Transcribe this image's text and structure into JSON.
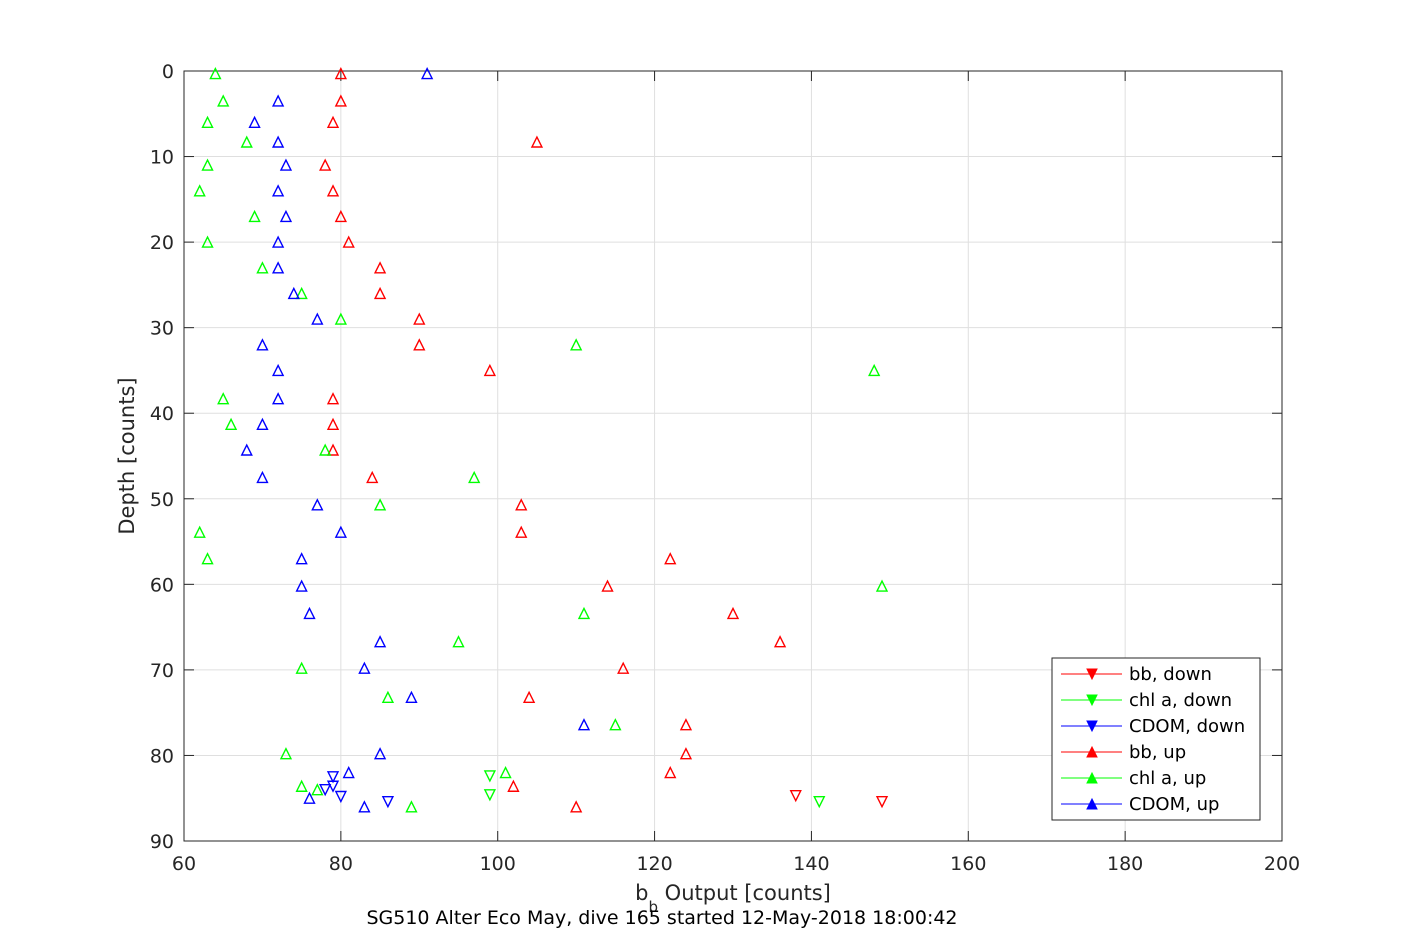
{
  "chart_data": {
    "type": "scatter",
    "title": "SG510 Alter Eco May, dive 165 started 12-May-2018 18:00:42",
    "xlabel_main": "b",
    "xlabel_sub": "b",
    "xlabel_rest": " Output [counts]",
    "ylabel": "Depth [counts]",
    "xlim": [
      60,
      200
    ],
    "ylim": [
      0,
      90
    ],
    "y_reversed": true,
    "xticks": [
      60,
      80,
      100,
      120,
      140,
      160,
      180,
      200
    ],
    "yticks": [
      0,
      10,
      20,
      30,
      40,
      50,
      60,
      70,
      80,
      90
    ],
    "grid": true,
    "legend_position": "bottom-right",
    "series": [
      {
        "name": "bb, down",
        "color": "#ff0000",
        "marker": "triangle-down",
        "points": [
          [
            138,
            84.7
          ],
          [
            149,
            85.4
          ]
        ]
      },
      {
        "name": "chl a, down",
        "color": "#00ff00",
        "marker": "triangle-down",
        "points": [
          [
            99,
            82.4
          ],
          [
            99,
            84.6
          ],
          [
            141,
            85.4
          ]
        ]
      },
      {
        "name": "CDOM, down",
        "color": "#0000ff",
        "marker": "triangle-down",
        "points": [
          [
            79,
            82.5
          ],
          [
            79,
            83.6
          ],
          [
            78,
            84
          ],
          [
            80,
            84.8
          ],
          [
            86,
            85.4
          ]
        ]
      },
      {
        "name": "bb, up",
        "color": "#ff0000",
        "marker": "triangle-up",
        "points": [
          [
            80,
            0.3
          ],
          [
            80,
            3.5
          ],
          [
            79,
            6
          ],
          [
            105,
            8.3
          ],
          [
            78,
            11
          ],
          [
            79,
            14
          ],
          [
            80,
            17
          ],
          [
            81,
            20
          ],
          [
            85,
            23
          ],
          [
            85,
            26
          ],
          [
            90,
            29
          ],
          [
            90,
            32
          ],
          [
            99,
            35
          ],
          [
            79,
            38.3
          ],
          [
            79,
            41.3
          ],
          [
            79,
            44.3
          ],
          [
            84,
            47.5
          ],
          [
            103,
            50.7
          ],
          [
            103,
            53.9
          ],
          [
            122,
            57
          ],
          [
            114,
            60.2
          ],
          [
            130,
            63.4
          ],
          [
            136,
            66.7
          ],
          [
            116,
            69.8
          ],
          [
            104,
            73.2
          ],
          [
            124,
            76.4
          ],
          [
            124,
            79.8
          ],
          [
            122,
            82
          ],
          [
            102,
            83.6
          ],
          [
            110,
            86
          ]
        ]
      },
      {
        "name": "chl a, up",
        "color": "#00ff00",
        "marker": "triangle-up",
        "points": [
          [
            64,
            0.3
          ],
          [
            65,
            3.5
          ],
          [
            63,
            6
          ],
          [
            68,
            8.3
          ],
          [
            63,
            11
          ],
          [
            62,
            14
          ],
          [
            69,
            17
          ],
          [
            63,
            20
          ],
          [
            70,
            23
          ],
          [
            75,
            26
          ],
          [
            80,
            29
          ],
          [
            110,
            32
          ],
          [
            148,
            35
          ],
          [
            65,
            38.3
          ],
          [
            66,
            41.3
          ],
          [
            78,
            44.3
          ],
          [
            97,
            47.5
          ],
          [
            85,
            50.7
          ],
          [
            62,
            53.9
          ],
          [
            63,
            57
          ],
          [
            149,
            60.2
          ],
          [
            111,
            63.4
          ],
          [
            95,
            66.7
          ],
          [
            75,
            69.8
          ],
          [
            86,
            73.2
          ],
          [
            115,
            76.4
          ],
          [
            73,
            79.8
          ],
          [
            101,
            82
          ],
          [
            75,
            83.6
          ],
          [
            77,
            84
          ],
          [
            89,
            86
          ]
        ]
      },
      {
        "name": "CDOM, up",
        "color": "#0000ff",
        "marker": "triangle-up",
        "points": [
          [
            91,
            0.3
          ],
          [
            72,
            3.5
          ],
          [
            69,
            6
          ],
          [
            72,
            8.3
          ],
          [
            73,
            11
          ],
          [
            72,
            14
          ],
          [
            73,
            17
          ],
          [
            72,
            20
          ],
          [
            72,
            23
          ],
          [
            74,
            26
          ],
          [
            77,
            29
          ],
          [
            70,
            32
          ],
          [
            72,
            35
          ],
          [
            72,
            38.3
          ],
          [
            70,
            41.3
          ],
          [
            68,
            44.3
          ],
          [
            70,
            47.5
          ],
          [
            77,
            50.7
          ],
          [
            80,
            53.9
          ],
          [
            75,
            57
          ],
          [
            75,
            60.2
          ],
          [
            76,
            63.4
          ],
          [
            85,
            66.7
          ],
          [
            83,
            69.8
          ],
          [
            89,
            73.2
          ],
          [
            111,
            76.4
          ],
          [
            85,
            79.8
          ],
          [
            81,
            82
          ],
          [
            76,
            85
          ],
          [
            83,
            86
          ]
        ]
      }
    ]
  }
}
